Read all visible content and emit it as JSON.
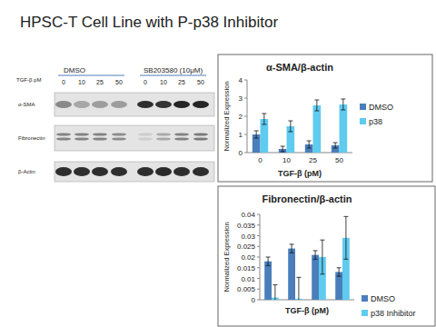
{
  "title": "HPSC-T Cell Line with P-p38  Inhibitor",
  "blot": {
    "x_label": "TGF-β pM",
    "groups": [
      {
        "label": "DMSO",
        "lanes": [
          "0",
          "10",
          "25",
          "50"
        ]
      },
      {
        "label": "SB203580 (10μM)",
        "lanes": [
          "0",
          "10",
          "25",
          "50"
        ]
      }
    ],
    "rows": [
      "α-SMA",
      "Fibronectin",
      "β-Actin"
    ]
  },
  "chart_data": [
    {
      "type": "bar",
      "title": "α-SMA/β-actin",
      "y_label": "Normalized Expression",
      "x_label": "TGF-β (pM)",
      "categories": [
        0,
        10,
        25,
        50
      ],
      "series": [
        {
          "name": "DMSO",
          "color": "#4a7ebb",
          "values": [
            1.0,
            0.2,
            0.45,
            0.4
          ],
          "errors": [
            0.2,
            0.15,
            0.2,
            0.15
          ]
        },
        {
          "name": "p38",
          "color": "#5fcbef",
          "values": [
            1.85,
            1.45,
            2.6,
            2.65
          ],
          "errors": [
            0.3,
            0.3,
            0.3,
            0.3
          ]
        }
      ],
      "ylim": [
        0,
        4
      ],
      "yticks": [
        0,
        1,
        2,
        3,
        4
      ],
      "grid": false,
      "legend": "right"
    },
    {
      "type": "bar",
      "title": "Fibronectin/β-actin",
      "y_label": "Normalized Expression",
      "x_label": "TGF-β (pM)",
      "categories": [
        null,
        null,
        null,
        null
      ],
      "series": [
        {
          "name": "DMSO",
          "color": "#4a7ebb",
          "values": [
            0.018,
            0.024,
            0.021,
            0.013
          ],
          "errors": [
            0.002,
            0.002,
            0.002,
            0.002
          ]
        },
        {
          "name": "p38 Inhibitor",
          "color": "#5fcbef",
          "values": [
            0.001,
            0.0005,
            0.02,
            0.029
          ],
          "errors": [
            0.006,
            0.01,
            0.008,
            0.01
          ]
        }
      ],
      "ylim": [
        0,
        0.04
      ],
      "yticks": [
        0,
        0.005,
        0.01,
        0.015,
        0.02,
        0.025,
        0.03,
        0.035,
        0.04
      ],
      "grid": false,
      "legend": "bottom-right"
    }
  ]
}
